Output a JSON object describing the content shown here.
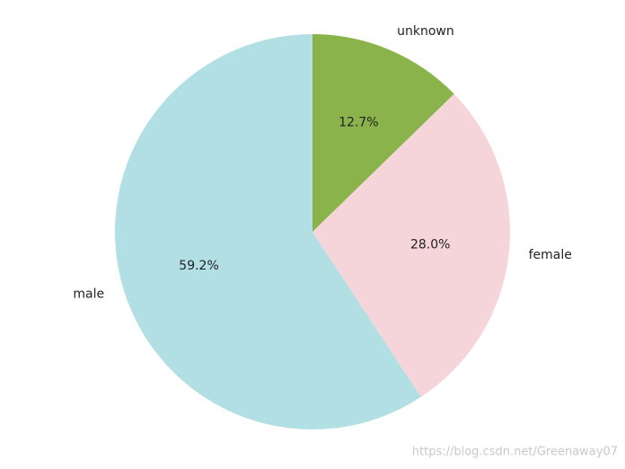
{
  "chart_data": {
    "type": "pie",
    "categories": [
      "male",
      "female",
      "unknown"
    ],
    "values": [
      59.2,
      28.0,
      12.7
    ],
    "value_labels": [
      "59.2%",
      "28.0%",
      "12.7%"
    ],
    "colors": [
      "#b2dfe4",
      "#f5d5da",
      "#8ab34c"
    ],
    "start_angle": 90,
    "counterclockwise": true
  },
  "watermark": "https://blog.csdn.net/Greenaway07"
}
